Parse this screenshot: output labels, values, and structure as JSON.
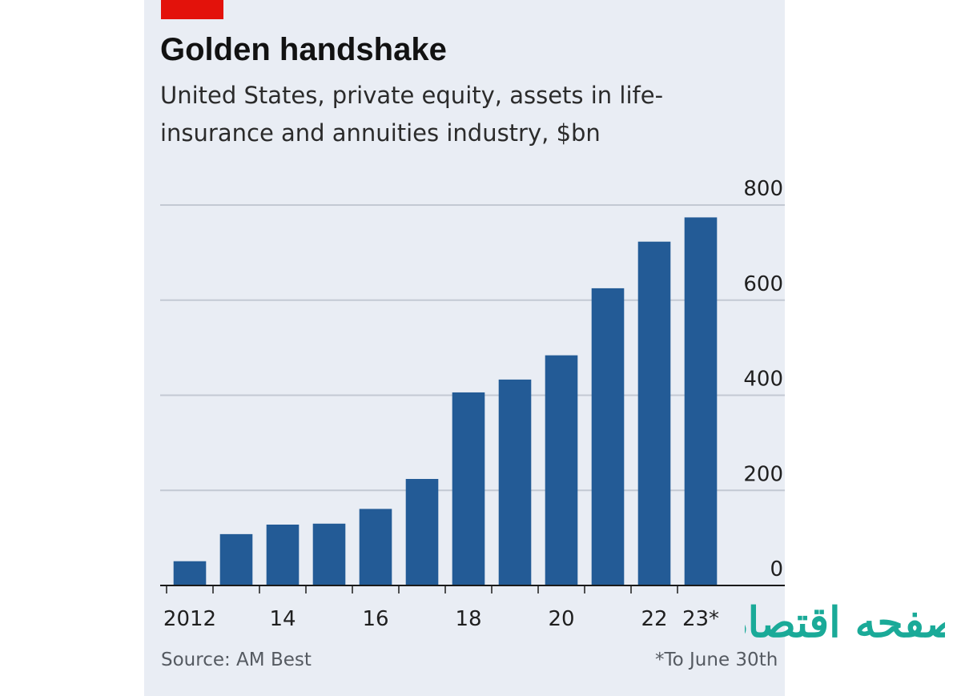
{
  "header": {
    "title": "Golden handshake",
    "subtitle": "United States, private equity, assets in life-insurance and annuities industry, $bn"
  },
  "footer": {
    "source": "Source: AM Best",
    "footnote": "*To June 30th"
  },
  "watermark": {
    "text": "صفحه اقتصاد",
    "color": "#1aaa98"
  },
  "colors": {
    "bar": "#235b96",
    "grid": "#c3c9d3",
    "axis": "#1a1a1a",
    "tag": "#e3120b",
    "background": "#e9edf4"
  },
  "chart_data": {
    "type": "bar",
    "title": "Golden handshake",
    "subtitle": "United States, private equity, assets in life-insurance and annuities industry, $bn",
    "categories": [
      "2012",
      "2013",
      "2014",
      "2015",
      "2016",
      "2017",
      "2018",
      "2019",
      "2020",
      "2021",
      "2022",
      "2023*"
    ],
    "x_tick_labels": [
      "2012",
      "",
      "14",
      "",
      "16",
      "",
      "18",
      "",
      "20",
      "",
      "22",
      "23*"
    ],
    "values": [
      51,
      108,
      128,
      130,
      161,
      224,
      406,
      433,
      484,
      625,
      723,
      774
    ],
    "ylim": [
      0,
      800
    ],
    "y_ticks": [
      0,
      200,
      400,
      600,
      800
    ],
    "y_axis_side": "right",
    "grid": true,
    "xlabel": "",
    "ylabel": ""
  }
}
